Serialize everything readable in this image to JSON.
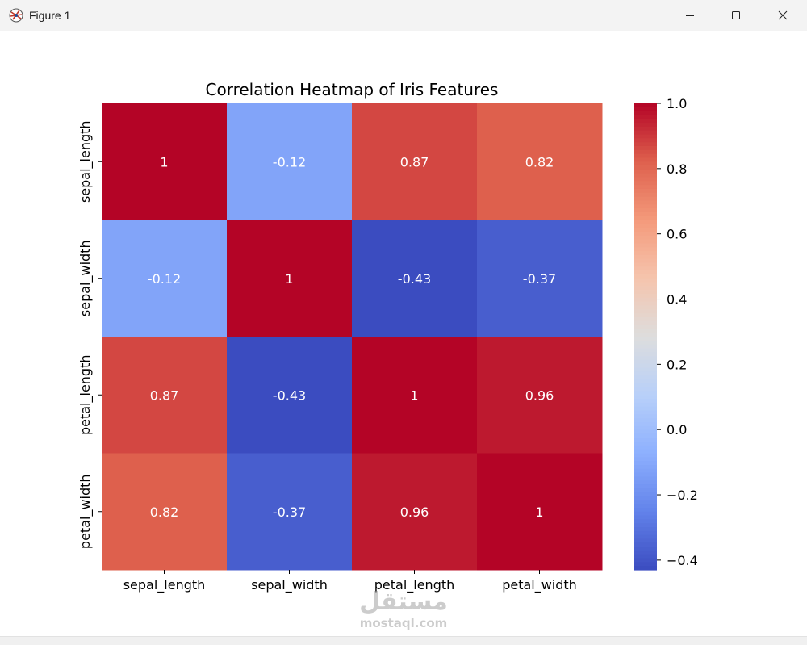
{
  "window": {
    "title": "Figure 1"
  },
  "watermark": {
    "arabic": "مستقل",
    "latin": "mostaql.com"
  },
  "chart_data": {
    "type": "heatmap",
    "title": "Correlation Heatmap of Iris Features",
    "xlabel": "",
    "ylabel": "",
    "x_categories": [
      "sepal_length",
      "sepal_width",
      "petal_length",
      "petal_width"
    ],
    "y_categories": [
      "sepal_length",
      "sepal_width",
      "petal_length",
      "petal_width"
    ],
    "values": [
      [
        1,
        -0.12,
        0.87,
        0.82
      ],
      [
        -0.12,
        1,
        -0.43,
        -0.37
      ],
      [
        0.87,
        -0.43,
        1,
        0.96
      ],
      [
        0.82,
        -0.37,
        0.96,
        1
      ]
    ],
    "annotations": [
      [
        "1",
        "-0.12",
        "0.87",
        "0.82"
      ],
      [
        "-0.12",
        "1",
        "-0.43",
        "-0.37"
      ],
      [
        "0.87",
        "-0.43",
        "1",
        "0.96"
      ],
      [
        "0.82",
        "-0.37",
        "0.96",
        "1"
      ]
    ],
    "colormap": "coolwarm",
    "vmin": -0.43,
    "vmax": 1.0,
    "colorbar": {
      "ticks": [
        1.0,
        0.8,
        0.6,
        0.4,
        0.2,
        0.0,
        -0.2,
        -0.4
      ],
      "tick_labels": [
        "1.0",
        "0.8",
        "0.6",
        "0.4",
        "0.2",
        "0.0",
        "−0.2",
        "−0.4"
      ]
    },
    "legend": "right"
  }
}
